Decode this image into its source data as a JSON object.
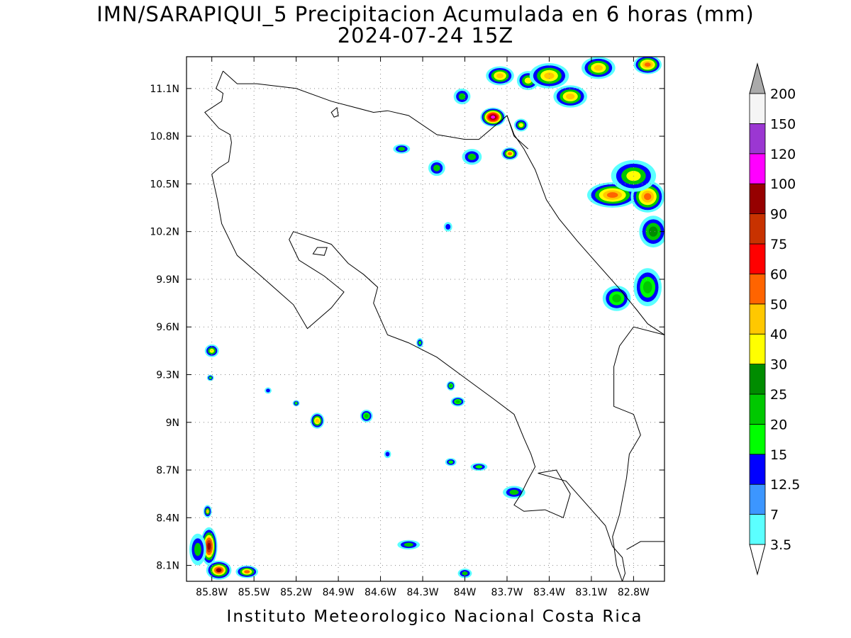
{
  "title": {
    "line1": "IMN/SARAPIQUI_5 Precipitacion Acumulada en 6 horas (mm)",
    "line2": "2024-07-24 15Z"
  },
  "footer": "Instituto Meteorologico Nacional Costa Rica",
  "map": {
    "grid": true,
    "lon_range": [
      -85.98,
      -82.58
    ],
    "lat_range": [
      8.0,
      11.3
    ],
    "x_ticks": [
      {
        "value": -85.8,
        "label": "85.8W"
      },
      {
        "value": -85.5,
        "label": "85.5W"
      },
      {
        "value": -85.2,
        "label": "85.2W"
      },
      {
        "value": -84.9,
        "label": "84.9W"
      },
      {
        "value": -84.6,
        "label": "84.6W"
      },
      {
        "value": -84.3,
        "label": "84.3W"
      },
      {
        "value": -84.0,
        "label": "84W"
      },
      {
        "value": -83.7,
        "label": "83.7W"
      },
      {
        "value": -83.4,
        "label": "83.4W"
      },
      {
        "value": -83.1,
        "label": "83.1W"
      },
      {
        "value": -82.8,
        "label": "82.8W"
      }
    ],
    "y_ticks": [
      {
        "value": 8.1,
        "label": "8.1N"
      },
      {
        "value": 8.4,
        "label": "8.4N"
      },
      {
        "value": 8.7,
        "label": "8.7N"
      },
      {
        "value": 9.0,
        "label": "9N"
      },
      {
        "value": 9.3,
        "label": "9.3N"
      },
      {
        "value": 9.6,
        "label": "9.6N"
      },
      {
        "value": 9.9,
        "label": "9.9N"
      },
      {
        "value": 10.2,
        "label": "10.2N"
      },
      {
        "value": 10.5,
        "label": "10.5N"
      },
      {
        "value": 10.8,
        "label": "10.8N"
      },
      {
        "value": 11.1,
        "label": "11.1N"
      }
    ],
    "coast_main": [
      [
        -85.72,
        11.21
      ],
      [
        -85.62,
        11.13
      ],
      [
        -85.48,
        11.13
      ],
      [
        -85.2,
        11.1
      ],
      [
        -84.95,
        11.02
      ],
      [
        -84.65,
        10.95
      ],
      [
        -84.55,
        10.96
      ],
      [
        -84.4,
        10.93
      ],
      [
        -84.2,
        10.81
      ],
      [
        -84.0,
        10.78
      ],
      [
        -83.9,
        10.78
      ],
      [
        -83.7,
        10.93
      ],
      [
        -83.65,
        10.81
      ],
      [
        -83.58,
        10.72
      ],
      [
        -83.5,
        10.59
      ],
      [
        -83.42,
        10.4
      ],
      [
        -83.33,
        10.28
      ],
      [
        -83.2,
        10.14
      ],
      [
        -83.05,
        9.99
      ],
      [
        -82.9,
        9.84
      ],
      [
        -82.78,
        9.71
      ],
      [
        -82.7,
        9.62
      ],
      [
        -82.58,
        9.55
      ]
    ],
    "coast_pacific": [
      [
        -85.72,
        11.21
      ],
      [
        -85.77,
        11.1
      ],
      [
        -85.72,
        11.07
      ],
      [
        -85.73,
        11.02
      ],
      [
        -85.85,
        10.95
      ],
      [
        -85.75,
        10.85
      ],
      [
        -85.67,
        10.81
      ],
      [
        -85.66,
        10.76
      ],
      [
        -85.68,
        10.64
      ],
      [
        -85.75,
        10.6
      ],
      [
        -85.8,
        10.56
      ],
      [
        -85.76,
        10.4
      ],
      [
        -85.73,
        10.25
      ],
      [
        -85.62,
        10.05
      ],
      [
        -85.45,
        9.92
      ],
      [
        -85.22,
        9.74
      ],
      [
        -85.12,
        9.59
      ],
      [
        -84.95,
        9.72
      ],
      [
        -84.86,
        9.82
      ],
      [
        -85.0,
        9.92
      ],
      [
        -85.18,
        10.02
      ],
      [
        -85.25,
        10.15
      ],
      [
        -85.22,
        10.2
      ],
      [
        -84.95,
        10.12
      ],
      [
        -84.83,
        10.0
      ],
      [
        -84.72,
        9.93
      ],
      [
        -84.62,
        9.85
      ],
      [
        -84.65,
        9.75
      ],
      [
        -84.55,
        9.55
      ],
      [
        -84.4,
        9.5
      ],
      [
        -84.2,
        9.41
      ],
      [
        -84.0,
        9.28
      ],
      [
        -83.8,
        9.15
      ],
      [
        -83.65,
        9.05
      ],
      [
        -83.58,
        8.9
      ],
      [
        -83.53,
        8.8
      ],
      [
        -83.5,
        8.72
      ],
      [
        -83.55,
        8.64
      ],
      [
        -83.6,
        8.55
      ],
      [
        -83.65,
        8.48
      ],
      [
        -83.58,
        8.44
      ],
      [
        -83.43,
        8.45
      ]
    ],
    "osa": [
      [
        -83.43,
        8.45
      ],
      [
        -83.3,
        8.4
      ],
      [
        -83.25,
        8.55
      ],
      [
        -83.35,
        8.7
      ],
      [
        -83.48,
        8.68
      ],
      [
        -83.28,
        8.63
      ],
      [
        -83.2,
        8.55
      ],
      [
        -83.1,
        8.45
      ],
      [
        -83.0,
        8.35
      ],
      [
        -82.95,
        8.22
      ],
      [
        -82.88,
        8.15
      ],
      [
        -82.86,
        8.05
      ],
      [
        -82.88,
        8.0
      ]
    ],
    "border_nic": [
      [
        -83.7,
        10.93
      ],
      [
        -83.65,
        10.8
      ],
      [
        -83.55,
        10.72
      ]
    ],
    "border_pan": [
      [
        -82.58,
        9.55
      ],
      [
        -82.8,
        9.6
      ],
      [
        -82.9,
        9.48
      ],
      [
        -82.94,
        9.35
      ],
      [
        -82.94,
        9.1
      ],
      [
        -82.8,
        9.05
      ],
      [
        -82.75,
        8.92
      ],
      [
        -82.83,
        8.8
      ],
      [
        -82.85,
        8.65
      ],
      [
        -82.9,
        8.42
      ],
      [
        -82.95,
        8.28
      ],
      [
        -82.92,
        8.1
      ],
      [
        -82.88,
        8.0
      ]
    ],
    "border_pan_east": [
      [
        -82.58,
        8.25
      ],
      [
        -82.75,
        8.25
      ],
      [
        -82.85,
        8.2
      ]
    ],
    "nicoya_isle": [
      [
        -85.05,
        10.1
      ],
      [
        -84.98,
        10.1
      ],
      [
        -85.0,
        10.05
      ],
      [
        -85.08,
        10.06
      ]
    ],
    "lake_isle": [
      [
        -84.95,
        10.95
      ],
      [
        -84.93,
        10.92
      ],
      [
        -84.9,
        10.93
      ],
      [
        -84.91,
        10.98
      ]
    ],
    "precip_blobs": [
      {
        "lon": -83.8,
        "lat": 10.92,
        "rx": 0.09,
        "ry": 0.06,
        "levels": [
          0,
          2,
          4,
          6,
          8,
          9,
          11,
          12
        ]
      },
      {
        "lon": -83.68,
        "lat": 10.69,
        "rx": 0.06,
        "ry": 0.04,
        "levels": [
          0,
          2,
          4,
          6,
          8
        ]
      },
      {
        "lon": -83.75,
        "lat": 11.18,
        "rx": 0.1,
        "ry": 0.06,
        "levels": [
          0,
          2,
          4,
          6,
          7
        ]
      },
      {
        "lon": -83.55,
        "lat": 11.15,
        "rx": 0.08,
        "ry": 0.06,
        "levels": [
          0,
          2,
          4,
          6
        ]
      },
      {
        "lon": -83.4,
        "lat": 11.18,
        "rx": 0.14,
        "ry": 0.08,
        "levels": [
          0,
          2,
          4,
          6,
          7
        ]
      },
      {
        "lon": -83.25,
        "lat": 11.05,
        "rx": 0.12,
        "ry": 0.07,
        "levels": [
          0,
          2,
          4,
          6,
          7
        ]
      },
      {
        "lon": -83.05,
        "lat": 11.23,
        "rx": 0.12,
        "ry": 0.07,
        "levels": [
          0,
          2,
          4,
          6,
          7
        ]
      },
      {
        "lon": -82.7,
        "lat": 11.25,
        "rx": 0.1,
        "ry": 0.06,
        "levels": [
          0,
          2,
          4,
          6,
          7,
          8
        ]
      },
      {
        "lon": -82.95,
        "lat": 10.43,
        "rx": 0.18,
        "ry": 0.08,
        "levels": [
          0,
          2,
          4,
          6,
          7,
          8
        ]
      },
      {
        "lon": -82.7,
        "lat": 10.42,
        "rx": 0.12,
        "ry": 0.1,
        "levels": [
          0,
          2,
          4,
          6,
          7,
          8
        ]
      },
      {
        "lon": -82.8,
        "lat": 10.55,
        "rx": 0.16,
        "ry": 0.1,
        "levels": [
          0,
          2,
          4,
          6
        ]
      },
      {
        "lon": -82.66,
        "lat": 10.2,
        "rx": 0.1,
        "ry": 0.1,
        "levels": [
          0,
          2,
          4,
          5
        ]
      },
      {
        "lon": -82.92,
        "lat": 9.78,
        "rx": 0.1,
        "ry": 0.08,
        "levels": [
          0,
          2,
          3,
          4
        ]
      },
      {
        "lon": -82.7,
        "lat": 9.85,
        "rx": 0.1,
        "ry": 0.12,
        "levels": [
          0,
          2,
          3,
          4
        ]
      },
      {
        "lon": -83.6,
        "lat": 10.87,
        "rx": 0.05,
        "ry": 0.04,
        "levels": [
          0,
          2,
          4,
          6
        ]
      },
      {
        "lon": -84.02,
        "lat": 11.05,
        "rx": 0.06,
        "ry": 0.05,
        "levels": [
          0,
          2,
          4
        ]
      },
      {
        "lon": -84.2,
        "lat": 10.6,
        "rx": 0.06,
        "ry": 0.05,
        "levels": [
          0,
          2,
          4
        ]
      },
      {
        "lon": -84.45,
        "lat": 10.72,
        "rx": 0.06,
        "ry": 0.03,
        "levels": [
          0,
          2,
          4
        ]
      },
      {
        "lon": -83.95,
        "lat": 10.67,
        "rx": 0.07,
        "ry": 0.05,
        "levels": [
          0,
          2,
          4
        ]
      },
      {
        "lon": -84.12,
        "lat": 10.23,
        "rx": 0.03,
        "ry": 0.03,
        "levels": [
          0,
          2
        ]
      },
      {
        "lon": -85.8,
        "lat": 9.45,
        "rx": 0.05,
        "ry": 0.04,
        "levels": [
          0,
          2,
          4,
          6
        ]
      },
      {
        "lon": -85.81,
        "lat": 9.28,
        "rx": 0.025,
        "ry": 0.02,
        "levels": [
          0,
          2,
          3
        ]
      },
      {
        "lon": -85.05,
        "lat": 9.01,
        "rx": 0.05,
        "ry": 0.05,
        "levels": [
          0,
          2,
          4,
          6,
          7
        ]
      },
      {
        "lon": -84.7,
        "lat": 9.04,
        "rx": 0.045,
        "ry": 0.04,
        "levels": [
          0,
          2,
          3,
          4
        ]
      },
      {
        "lon": -84.32,
        "lat": 9.5,
        "rx": 0.025,
        "ry": 0.03,
        "levels": [
          0,
          2,
          3
        ]
      },
      {
        "lon": -84.1,
        "lat": 9.23,
        "rx": 0.03,
        "ry": 0.03,
        "levels": [
          0,
          2,
          3,
          4
        ]
      },
      {
        "lon": -84.05,
        "lat": 9.13,
        "rx": 0.05,
        "ry": 0.03,
        "levels": [
          0,
          2,
          3,
          4
        ]
      },
      {
        "lon": -85.4,
        "lat": 9.2,
        "rx": 0.025,
        "ry": 0.02,
        "levels": [
          0,
          2
        ]
      },
      {
        "lon": -85.2,
        "lat": 9.12,
        "rx": 0.025,
        "ry": 0.02,
        "levels": [
          0,
          2,
          3
        ]
      },
      {
        "lon": -84.1,
        "lat": 8.75,
        "rx": 0.04,
        "ry": 0.025,
        "levels": [
          0,
          2,
          3
        ]
      },
      {
        "lon": -83.9,
        "lat": 8.72,
        "rx": 0.06,
        "ry": 0.025,
        "levels": [
          0,
          2,
          3
        ]
      },
      {
        "lon": -83.65,
        "lat": 8.56,
        "rx": 0.08,
        "ry": 0.04,
        "levels": [
          0,
          2,
          4
        ]
      },
      {
        "lon": -84.4,
        "lat": 8.23,
        "rx": 0.08,
        "ry": 0.03,
        "levels": [
          0,
          2,
          4
        ]
      },
      {
        "lon": -84.0,
        "lat": 8.05,
        "rx": 0.05,
        "ry": 0.03,
        "levels": [
          0,
          2,
          4
        ]
      },
      {
        "lon": -84.55,
        "lat": 8.8,
        "rx": 0.025,
        "ry": 0.025,
        "levels": [
          0,
          2
        ]
      },
      {
        "lon": -85.83,
        "lat": 8.44,
        "rx": 0.03,
        "ry": 0.04,
        "levels": [
          0,
          2,
          4,
          7
        ]
      },
      {
        "lon": -85.82,
        "lat": 8.22,
        "rx": 0.06,
        "ry": 0.12,
        "levels": [
          0,
          2,
          4,
          6,
          8,
          10,
          11
        ]
      },
      {
        "lon": -85.75,
        "lat": 8.07,
        "rx": 0.09,
        "ry": 0.06,
        "levels": [
          0,
          2,
          4,
          6,
          8,
          11
        ]
      },
      {
        "lon": -85.55,
        "lat": 8.06,
        "rx": 0.08,
        "ry": 0.04,
        "levels": [
          0,
          2,
          4,
          6,
          8
        ]
      },
      {
        "lon": -85.9,
        "lat": 8.2,
        "rx": 0.06,
        "ry": 0.1,
        "levels": [
          0,
          2,
          4
        ]
      }
    ]
  },
  "colorbar": {
    "colors": [
      "#ffffff",
      "#5bffff",
      "#3c96ff",
      "#0000ff",
      "#00ff00",
      "#00c800",
      "#008c00",
      "#ffff00",
      "#ffc800",
      "#ff6400",
      "#ff0000",
      "#c83200",
      "#960000",
      "#ff00ff",
      "#9b37d2",
      "#f5f5f5",
      "#aaaaaa"
    ],
    "labels": [
      "3.5",
      "7",
      "12.5",
      "15",
      "20",
      "25",
      "30",
      "40",
      "50",
      "60",
      "75",
      "90",
      "100",
      "120",
      "150",
      "200"
    ]
  }
}
